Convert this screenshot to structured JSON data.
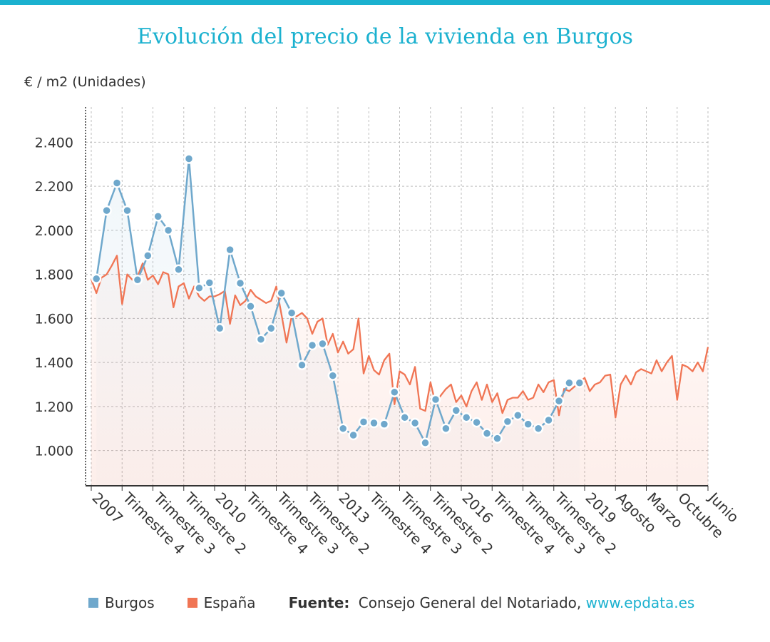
{
  "page": {
    "title": "Evolución del precio de la vivienda en Burgos",
    "unit_label": "€ / m2 (Unidades)"
  },
  "colors": {
    "accent": "#1bb1cf",
    "burgos": "#6fa8cc",
    "espana": "#f07554"
  },
  "legend": {
    "items": [
      {
        "label": "Burgos",
        "color": "#6fa8cc"
      },
      {
        "label": "España",
        "color": "#f07554"
      }
    ],
    "source_label": "Fuente:",
    "source_text": "Consejo General del Notariado,",
    "source_link": "www.epdata.es"
  },
  "chart_data": {
    "type": "line",
    "ylim": [
      840,
      2560
    ],
    "yticks": [
      1000,
      1200,
      1400,
      1600,
      1800,
      2000,
      2200,
      2400
    ],
    "ytick_labels": [
      "1.000",
      "1.200",
      "1.400",
      "1.600",
      "1.800",
      "2.000",
      "2.200",
      "2.400"
    ],
    "x_tick_labels": [
      "2007",
      "Trimestre 4",
      "Trimestre 3",
      "Trimestre 2",
      "2010",
      "Trimestre 4",
      "Trimestre 3",
      "Trimestre 2",
      "2013",
      "Trimestre 4",
      "Trimestre 3",
      "Trimestre 2",
      "2016",
      "Trimestre 4",
      "Trimestre 3",
      "Trimestre 2",
      "2019",
      "Agosto",
      "Marzo",
      "Octubre",
      "Junio"
    ],
    "x_tick_index": [
      0,
      6,
      12,
      18,
      24,
      30,
      36,
      42,
      48,
      54,
      60,
      66,
      72,
      78,
      84,
      90,
      96,
      102,
      108,
      114,
      120
    ],
    "x_count": 121,
    "grid": true,
    "legend_position": "bottom",
    "series": [
      {
        "name": "Burgos",
        "color": "#6fa8cc",
        "x": [
          1,
          3,
          5,
          7,
          9,
          11,
          13,
          15,
          17,
          19,
          21,
          23,
          25,
          27,
          29,
          31,
          33,
          35,
          37,
          39,
          41,
          43,
          45,
          47,
          49,
          51,
          53,
          55,
          57,
          59,
          61,
          63,
          65,
          67,
          69,
          71,
          73,
          75,
          77,
          79,
          81,
          83,
          85,
          87,
          89,
          91,
          93,
          95
        ],
        "values": [
          1780,
          2090,
          2215,
          2090,
          1775,
          1885,
          2063,
          2000,
          1822,
          2325,
          1738,
          1762,
          1555,
          1912,
          1760,
          1655,
          1505,
          1555,
          1715,
          1625,
          1388,
          1478,
          1485,
          1340,
          1100,
          1070,
          1130,
          1125,
          1120,
          1265,
          1150,
          1125,
          1035,
          1232,
          1100,
          1182,
          1150,
          1128,
          1078,
          1055,
          1132,
          1160,
          1120,
          1100,
          1138,
          1225,
          1307,
          1307
        ]
      },
      {
        "name": "España",
        "color": "#f07554",
        "x": [
          0,
          1,
          2,
          3,
          4,
          5,
          6,
          7,
          8,
          9,
          10,
          11,
          12,
          13,
          14,
          15,
          16,
          17,
          18,
          19,
          20,
          21,
          22,
          23,
          24,
          25,
          26,
          27,
          28,
          29,
          30,
          31,
          32,
          33,
          34,
          35,
          36,
          37,
          38,
          39,
          40,
          41,
          42,
          43,
          44,
          45,
          46,
          47,
          48,
          49,
          50,
          51,
          52,
          53,
          54,
          55,
          56,
          57,
          58,
          59,
          60,
          61,
          62,
          63,
          64,
          65,
          66,
          67,
          68,
          69,
          70,
          71,
          72,
          73,
          74,
          75,
          76,
          77,
          78,
          79,
          80,
          81,
          82,
          83,
          84,
          85,
          86,
          87,
          88,
          89,
          90,
          91,
          92,
          93,
          94,
          95,
          96,
          97,
          98,
          99,
          100,
          101,
          102,
          103,
          104,
          105,
          106,
          107,
          108,
          109,
          110,
          111,
          112,
          113,
          114,
          115,
          116,
          117,
          118,
          119,
          120
        ],
        "values": [
          1778,
          1715,
          1785,
          1800,
          1840,
          1885,
          1665,
          1800,
          1775,
          1790,
          1850,
          1775,
          1795,
          1755,
          1810,
          1800,
          1650,
          1745,
          1760,
          1690,
          1745,
          1700,
          1680,
          1700,
          1700,
          1710,
          1725,
          1575,
          1705,
          1660,
          1680,
          1730,
          1700,
          1685,
          1670,
          1680,
          1745,
          1620,
          1490,
          1610,
          1610,
          1625,
          1600,
          1530,
          1585,
          1600,
          1480,
          1530,
          1445,
          1495,
          1440,
          1460,
          1600,
          1350,
          1430,
          1365,
          1345,
          1410,
          1440,
          1210,
          1360,
          1345,
          1300,
          1380,
          1190,
          1180,
          1310,
          1210,
          1250,
          1280,
          1300,
          1220,
          1250,
          1200,
          1270,
          1310,
          1230,
          1300,
          1220,
          1260,
          1170,
          1230,
          1240,
          1240,
          1270,
          1230,
          1240,
          1300,
          1265,
          1310,
          1320,
          1160,
          1280,
          1270,
          1290,
          1310,
          1330,
          1270,
          1300,
          1310,
          1340,
          1345,
          1150,
          1300,
          1340,
          1300,
          1355,
          1370,
          1360,
          1350,
          1410,
          1360,
          1400,
          1430,
          1230,
          1390,
          1380,
          1360,
          1400,
          1360,
          1470
        ]
      }
    ]
  }
}
